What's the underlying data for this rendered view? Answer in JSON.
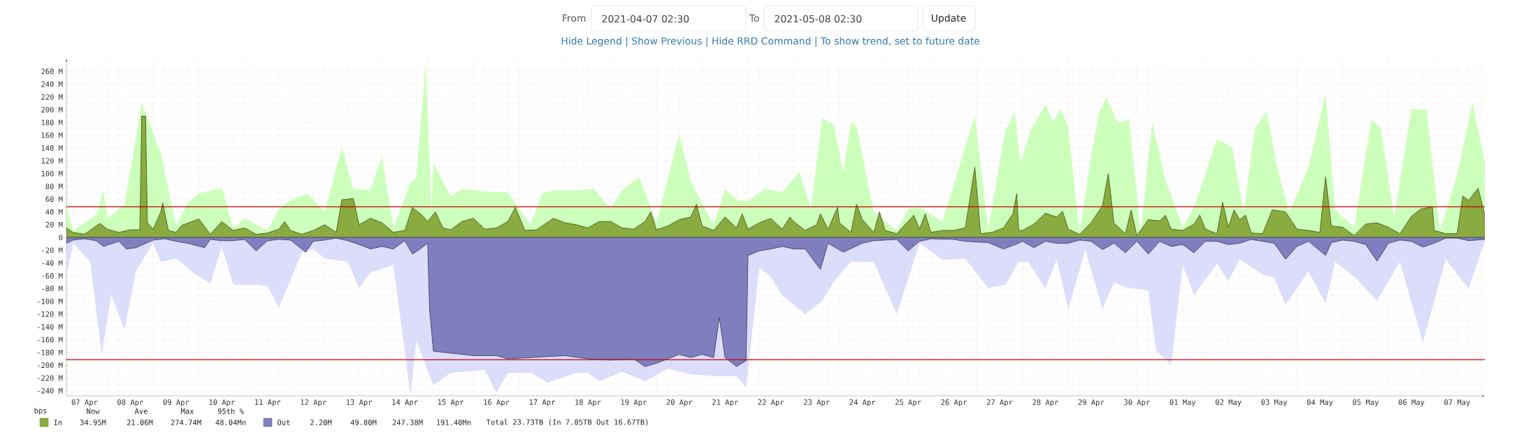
{
  "chart_data": {
    "type": "area",
    "xlim": [
      "2021-04-07T02:30",
      "2021-05-08T02:30"
    ],
    "ylim": [
      -248,
      280
    ],
    "xticks": [
      {
        "value": "2021-04-07T12:00",
        "label": "07 Apr"
      },
      {
        "value": "2021-04-08T12:00",
        "label": "08 Apr"
      },
      {
        "value": "2021-04-09T12:00",
        "label": "09 Apr"
      },
      {
        "value": "2021-04-10T12:00",
        "label": "10 Apr"
      },
      {
        "value": "2021-04-11T12:00",
        "label": "11 Apr"
      },
      {
        "value": "2021-04-12T12:00",
        "label": "12 Apr"
      },
      {
        "value": "2021-04-13T12:00",
        "label": "13 Apr"
      },
      {
        "value": "2021-04-14T12:00",
        "label": "14 Apr"
      },
      {
        "value": "2021-04-15T12:00",
        "label": "15 Apr"
      },
      {
        "value": "2021-04-16T12:00",
        "label": "16 Apr"
      },
      {
        "value": "2021-04-17T12:00",
        "label": "17 Apr"
      },
      {
        "value": "2021-04-18T12:00",
        "label": "18 Apr"
      },
      {
        "value": "2021-04-19T12:00",
        "label": "19 Apr"
      },
      {
        "value": "2021-04-20T12:00",
        "label": "20 Apr"
      },
      {
        "value": "2021-04-21T12:00",
        "label": "21 Apr"
      },
      {
        "value": "2021-04-22T12:00",
        "label": "22 Apr"
      },
      {
        "value": "2021-04-23T12:00",
        "label": "23 Apr"
      },
      {
        "value": "2021-04-24T12:00",
        "label": "24 Apr"
      },
      {
        "value": "2021-04-25T12:00",
        "label": "25 Apr"
      },
      {
        "value": "2021-04-26T12:00",
        "label": "26 Apr"
      },
      {
        "value": "2021-04-27T12:00",
        "label": "27 Apr"
      },
      {
        "value": "2021-04-28T12:00",
        "label": "28 Apr"
      },
      {
        "value": "2021-04-29T12:00",
        "label": "29 Apr"
      },
      {
        "value": "2021-04-30T12:00",
        "label": "30 Apr"
      },
      {
        "value": "2021-05-01T12:00",
        "label": "01 May"
      },
      {
        "value": "2021-05-02T12:00",
        "label": "02 May"
      },
      {
        "value": "2021-05-03T12:00",
        "label": "03 May"
      },
      {
        "value": "2021-05-04T12:00",
        "label": "04 May"
      },
      {
        "value": "2021-05-05T12:00",
        "label": "05 May"
      },
      {
        "value": "2021-05-06T12:00",
        "label": "06 May"
      },
      {
        "value": "2021-05-07T12:00",
        "label": "07 May"
      }
    ],
    "yticks": [
      {
        "value": -240,
        "label": "-240 M"
      },
      {
        "value": -220,
        "label": "-220 M"
      },
      {
        "value": -200,
        "label": "-200 M"
      },
      {
        "value": -180,
        "label": "-180 M"
      },
      {
        "value": -160,
        "label": "-160 M"
      },
      {
        "value": -140,
        "label": "-140 M"
      },
      {
        "value": -120,
        "label": "-120 M"
      },
      {
        "value": -100,
        "label": "-100 M"
      },
      {
        "value": -80,
        "label": "-80 M"
      },
      {
        "value": -60,
        "label": "-60 M"
      },
      {
        "value": -40,
        "label": "-40 M"
      },
      {
        "value": -20,
        "label": "-20 M"
      },
      0,
      {
        "value": 20,
        "label": "20 M"
      },
      {
        "value": 40,
        "label": "40 M"
      },
      {
        "value": 60,
        "label": "60 M"
      },
      {
        "value": 80,
        "label": "80 M"
      },
      {
        "value": 100,
        "label": "100 M"
      },
      {
        "value": 120,
        "label": "120 M"
      },
      {
        "value": 140,
        "label": "140 M"
      },
      {
        "value": 160,
        "label": "160 M"
      },
      {
        "value": 180,
        "label": "180 M"
      },
      {
        "value": 200,
        "label": "200 M"
      },
      {
        "value": 220,
        "label": "220 M"
      },
      {
        "value": 240,
        "label": "240 M"
      },
      {
        "value": 260,
        "label": "260 M"
      }
    ],
    "grid": true,
    "legend": "bottom",
    "ref_lines": [
      {
        "axis": "y",
        "value": 48.04,
        "color": "#c00000"
      },
      {
        "axis": "y",
        "value": -191.4,
        "color": "#c00000"
      }
    ],
    "series": [
      {
        "color": "#ccffbb",
        "x": [
          "2021-04-07T02:30",
          "2021-04-07T06:00",
          "2021-04-07T18:00",
          "2021-04-07T22:00",
          "2021-04-08T00:00",
          "2021-04-08T09:00",
          "2021-04-08T18:00",
          "2021-04-09T04:00",
          "2021-04-09T12:00",
          "2021-04-09T18:00",
          "2021-04-10T00:00",
          "2021-04-10T12:00",
          "2021-04-10T18:00",
          "2021-04-11T00:00",
          "2021-04-11T12:00",
          "2021-04-11T18:00",
          "2021-04-12T00:00",
          "2021-04-12T09:00",
          "2021-04-12T18:00",
          "2021-04-13T03:00",
          "2021-04-13T09:00",
          "2021-04-13T18:00",
          "2021-04-14T00:00",
          "2021-04-14T06:00",
          "2021-04-14T15:00",
          "2021-04-14T18:00",
          "2021-04-14T23:00",
          "2021-04-15T02:00",
          "2021-04-15T03:00",
          "2021-04-15T12:00",
          "2021-04-15T18:00",
          "2021-04-16T00:00",
          "2021-04-16T12:00",
          "2021-04-16T18:00",
          "2021-04-17T06:00",
          "2021-04-17T12:00",
          "2021-04-17T18:00",
          "2021-04-18T06:00",
          "2021-04-18T15:00",
          "2021-04-19T00:00",
          "2021-04-19T06:00",
          "2021-04-19T15:00",
          "2021-04-20T00:00",
          "2021-04-20T12:00",
          "2021-04-20T18:00",
          "2021-04-21T06:00",
          "2021-04-21T12:00",
          "2021-04-21T18:00",
          "2021-04-22T00:00",
          "2021-04-22T09:00",
          "2021-04-22T18:00",
          "2021-04-23T03:00",
          "2021-04-23T09:00",
          "2021-04-23T15:00",
          "2021-04-23T21:00",
          "2021-04-24T02:00",
          "2021-04-24T06:00",
          "2021-04-24T09:00",
          "2021-04-24T18:00",
          "2021-04-25T06:00",
          "2021-04-25T12:00",
          "2021-04-25T18:00",
          "2021-04-26T06:00",
          "2021-04-26T23:00",
          "2021-04-27T06:00",
          "2021-04-27T15:00",
          "2021-04-27T20:00",
          "2021-04-27T23:00",
          "2021-04-28T04:00",
          "2021-04-28T12:00",
          "2021-04-28T16:00",
          "2021-04-28T20:00",
          "2021-04-29T00:00",
          "2021-04-29T06:00",
          "2021-04-29T12:00",
          "2021-04-29T16:00",
          "2021-04-29T20:00",
          "2021-04-30T02:00",
          "2021-04-30T08:00",
          "2021-04-30T14:00",
          "2021-04-30T20:00",
          "2021-05-01T03:00",
          "2021-05-01T12:00",
          "2021-05-01T18:00",
          "2021-05-02T06:00",
          "2021-05-02T14:00",
          "2021-05-02T20:00",
          "2021-05-03T02:00",
          "2021-05-03T08:00",
          "2021-05-03T14:00",
          "2021-05-03T20:00",
          "2021-05-04T06:00",
          "2021-05-04T15:00",
          "2021-05-04T20:00",
          "2021-05-05T06:00",
          "2021-05-05T15:00",
          "2021-05-05T20:00",
          "2021-05-06T03:00",
          "2021-05-06T12:00",
          "2021-05-06T20:00",
          "2021-05-07T03:00",
          "2021-05-07T12:00",
          "2021-05-07T20:00",
          "2021-05-08T02:30"
        ],
        "values": [
          48,
          11,
          35,
          74,
          30,
          52,
          211,
          132,
          18,
          54,
          69,
          78,
          15,
          30,
          11,
          45,
          59,
          69,
          40,
          142,
          76,
          74,
          127,
          15,
          86,
          93,
          274,
          40,
          117,
          64,
          76,
          74,
          71,
          71,
          20,
          69,
          74,
          74,
          76,
          45,
          74,
          95,
          23,
          163,
          88,
          20,
          76,
          59,
          57,
          76,
          71,
          103,
          45,
          187,
          176,
          103,
          180,
          174,
          40,
          11,
          45,
          47,
          25,
          190,
          13,
          168,
          195,
          117,
          166,
          208,
          181,
          201,
          173,
          8,
          127,
          194,
          220,
          179,
          186,
          6,
          181,
          90,
          16,
          48,
          154,
          141,
          40,
          171,
          197,
          105,
          40,
          110,
          225,
          43,
          16,
          184,
          171,
          31,
          201,
          199,
          11,
          97,
          211,
          119
        ]
      },
      {
        "color": "#dcdcfb",
        "x": [
          "2021-04-07T02:30",
          "2021-04-07T06:00",
          "2021-04-07T15:00",
          "2021-04-07T21:00",
          "2021-04-08T02:00",
          "2021-04-08T09:00",
          "2021-04-08T15:00",
          "2021-04-09T00:00",
          "2021-04-09T04:00",
          "2021-04-09T12:00",
          "2021-04-09T21:00",
          "2021-04-10T06:00",
          "2021-04-10T12:00",
          "2021-04-10T18:00",
          "2021-04-11T06:00",
          "2021-04-11T12:00",
          "2021-04-11T18:00",
          "2021-04-12T06:00",
          "2021-04-12T12:00",
          "2021-04-12T18:00",
          "2021-04-13T06:00",
          "2021-04-13T12:00",
          "2021-04-13T18:00",
          "2021-04-14T06:00",
          "2021-04-14T15:00",
          "2021-04-14T18:00",
          "2021-04-15T03:00",
          "2021-04-15T12:00",
          "2021-04-16T06:00",
          "2021-04-16T12:00",
          "2021-04-16T18:00",
          "2021-04-17T06:00",
          "2021-04-17T15:00",
          "2021-04-18T06:00",
          "2021-04-18T12:00",
          "2021-04-18T18:00",
          "2021-04-19T06:00",
          "2021-04-19T18:00",
          "2021-04-20T06:00",
          "2021-04-20T18:00",
          "2021-04-21T06:00",
          "2021-04-21T18:00",
          "2021-04-21T23:00",
          "2021-04-22T06:00",
          "2021-04-22T12:00",
          "2021-04-22T18:00",
          "2021-04-23T06:00",
          "2021-04-23T15:00",
          "2021-04-23T21:00",
          "2021-04-24T06:00",
          "2021-04-24T18:00",
          "2021-04-25T06:00",
          "2021-04-25T18:00",
          "2021-04-26T06:00",
          "2021-04-26T18:00",
          "2021-04-27T06:00",
          "2021-04-27T15:00",
          "2021-04-27T22:00",
          "2021-04-28T03:00",
          "2021-04-28T12:00",
          "2021-04-28T18:00",
          "2021-04-29T00:00",
          "2021-04-29T09:00",
          "2021-04-29T18:00",
          "2021-04-30T00:00",
          "2021-04-30T06:00",
          "2021-04-30T18:00",
          "2021-04-30T22:00",
          "2021-05-01T06:00",
          "2021-05-01T12:00",
          "2021-05-01T18:00",
          "2021-05-02T06:00",
          "2021-05-02T12:00",
          "2021-05-02T18:00",
          "2021-05-03T06:00",
          "2021-05-03T12:00",
          "2021-05-03T18:00",
          "2021-05-04T06:00",
          "2021-05-04T15:00",
          "2021-05-04T20:00",
          "2021-05-05T06:00",
          "2021-05-05T18:00",
          "2021-05-06T06:00",
          "2021-05-06T18:00",
          "2021-05-07T06:00",
          "2021-05-07T18:00",
          "2021-05-08T02:30"
        ],
        "values": [
          -60,
          -9,
          -38,
          -183,
          -89,
          -144,
          -52,
          -9,
          -38,
          -33,
          -55,
          -72,
          -14,
          -74,
          -74,
          -76,
          -110,
          -23,
          -18,
          -33,
          -38,
          -79,
          -55,
          -43,
          -247,
          -161,
          -231,
          -212,
          -207,
          -243,
          -212,
          -212,
          -227,
          -212,
          -212,
          -225,
          -210,
          -225,
          -205,
          -214,
          -217,
          -217,
          -235,
          -47,
          -62,
          -91,
          -120,
          -99,
          -69,
          -38,
          -38,
          -120,
          -9,
          -35,
          -33,
          -79,
          -74,
          -38,
          -38,
          -80,
          -34,
          -112,
          -19,
          -112,
          -70,
          -78,
          -83,
          -176,
          -200,
          -43,
          -90,
          -41,
          -68,
          -34,
          -58,
          -63,
          -105,
          -53,
          -103,
          -38,
          -61,
          -99,
          -38,
          -164,
          -34,
          -80,
          -6
        ]
      },
      {
        "name": "In",
        "color": "#8aab3f",
        "x": [
          "2021-04-07T02:30",
          "2021-04-07T06:00",
          "2021-04-07T12:00",
          "2021-04-07T20:00",
          "2021-04-08T00:00",
          "2021-04-08T06:00",
          "2021-04-08T12:00",
          "2021-04-08T17:00",
          "2021-04-08T18:00",
          "2021-04-08T20:00",
          "2021-04-08T21:00",
          "2021-04-09T00:00",
          "2021-04-09T04:00",
          "2021-04-09T05:00",
          "2021-04-09T08:00",
          "2021-04-09T12:00",
          "2021-04-09T15:00",
          "2021-04-10T00:00",
          "2021-04-10T06:00",
          "2021-04-10T12:00",
          "2021-04-10T18:00",
          "2021-04-11T00:00",
          "2021-04-11T06:00",
          "2021-04-11T12:00",
          "2021-04-11T18:00",
          "2021-04-11T21:00",
          "2021-04-12T00:00",
          "2021-04-12T06:00",
          "2021-04-12T12:00",
          "2021-04-12T18:00",
          "2021-04-13T00:00",
          "2021-04-13T03:00",
          "2021-04-13T09:00",
          "2021-04-13T12:00",
          "2021-04-13T18:00",
          "2021-04-14T00:00",
          "2021-04-14T06:00",
          "2021-04-14T12:00",
          "2021-04-14T16:00",
          "2021-04-14T21:00",
          "2021-04-15T00:00",
          "2021-04-15T04:00",
          "2021-04-15T08:00",
          "2021-04-15T12:00",
          "2021-04-15T18:00",
          "2021-04-16T00:00",
          "2021-04-16T06:00",
          "2021-04-16T12:00",
          "2021-04-16T18:00",
          "2021-04-16T22:00",
          "2021-04-17T03:00",
          "2021-04-17T09:00",
          "2021-04-17T18:00",
          "2021-04-18T00:00",
          "2021-04-18T06:00",
          "2021-04-18T12:00",
          "2021-04-18T18:00",
          "2021-04-19T00:00",
          "2021-04-19T06:00",
          "2021-04-19T12:00",
          "2021-04-19T18:00",
          "2021-04-19T21:00",
          "2021-04-20T00:00",
          "2021-04-20T06:00",
          "2021-04-20T12:00",
          "2021-04-20T18:00",
          "2021-04-20T21:00",
          "2021-04-21T00:00",
          "2021-04-21T06:00",
          "2021-04-21T12:00",
          "2021-04-21T18:00",
          "2021-04-21T21:00",
          "2021-04-22T00:00",
          "2021-04-22T06:00",
          "2021-04-22T12:00",
          "2021-04-22T18:00",
          "2021-04-22T22:00",
          "2021-04-23T00:00",
          "2021-04-23T06:00",
          "2021-04-23T12:00",
          "2021-04-23T14:00",
          "2021-04-23T18:00",
          "2021-04-23T23:00",
          "2021-04-24T00:00",
          "2021-04-24T06:00",
          "2021-04-24T09:00",
          "2021-04-24T12:00",
          "2021-04-24T18:00",
          "2021-04-24T21:00",
          "2021-04-25T00:00",
          "2021-04-25T06:00",
          "2021-04-25T12:00",
          "2021-04-25T15:00",
          "2021-04-25T18:00",
          "2021-04-25T21:00",
          "2021-04-26T00:00",
          "2021-04-26T06:00",
          "2021-04-26T12:00",
          "2021-04-26T18:00",
          "2021-04-26T23:00",
          "2021-04-27T02:00",
          "2021-04-27T08:00",
          "2021-04-27T14:00",
          "2021-04-27T19:00",
          "2021-04-27T21:00",
          "2021-04-27T22:00",
          "2021-04-28T00:00",
          "2021-04-28T06:00",
          "2021-04-28T12:00",
          "2021-04-28T18:00",
          "2021-04-28T21:00",
          "2021-04-29T00:00",
          "2021-04-29T06:00",
          "2021-04-29T12:00",
          "2021-04-29T18:00",
          "2021-04-29T21:00",
          "2021-04-30T00:00",
          "2021-04-30T06:00",
          "2021-04-30T09:00",
          "2021-04-30T12:00",
          "2021-04-30T18:00",
          "2021-05-01T00:00",
          "2021-05-01T03:00",
          "2021-05-01T06:00",
          "2021-05-01T12:00",
          "2021-05-01T18:00",
          "2021-05-01T21:00",
          "2021-05-02T00:00",
          "2021-05-02T06:00",
          "2021-05-02T09:00",
          "2021-05-02T12:00",
          "2021-05-02T15:00",
          "2021-05-02T18:00",
          "2021-05-02T21:00",
          "2021-05-03T00:00",
          "2021-05-03T06:00",
          "2021-05-03T11:00",
          "2021-05-03T12:00",
          "2021-05-03T18:00",
          "2021-05-04T00:00",
          "2021-05-04T06:00",
          "2021-05-04T12:00",
          "2021-05-04T15:00",
          "2021-05-04T18:00",
          "2021-05-05T00:00",
          "2021-05-05T06:00",
          "2021-05-05T12:00",
          "2021-05-05T18:00",
          "2021-05-06T00:00",
          "2021-05-06T06:00",
          "2021-05-06T12:00",
          "2021-05-06T17:00",
          "2021-05-06T18:00",
          "2021-05-06T23:00",
          "2021-05-07T00:00",
          "2021-05-07T06:00",
          "2021-05-07T12:00",
          "2021-05-07T15:00",
          "2021-05-07T18:00",
          "2021-05-07T23:00",
          "2021-05-08T02:30"
        ],
        "values": [
          15,
          8,
          5,
          22,
          13,
          8,
          12,
          12,
          190,
          190,
          23,
          13,
          40,
          54,
          11,
          8,
          19,
          29,
          5,
          25,
          11,
          15,
          5,
          7,
          13,
          25,
          11,
          5,
          11,
          20,
          8,
          59,
          61,
          20,
          30,
          23,
          8,
          11,
          47,
          35,
          25,
          40,
          15,
          12,
          25,
          30,
          13,
          15,
          25,
          47,
          11,
          12,
          30,
          23,
          20,
          15,
          25,
          25,
          15,
          13,
          25,
          40,
          12,
          18,
          28,
          32,
          52,
          18,
          11,
          32,
          15,
          37,
          13,
          23,
          30,
          13,
          32,
          25,
          11,
          20,
          37,
          13,
          47,
          23,
          8,
          52,
          28,
          8,
          40,
          11,
          6,
          25,
          35,
          13,
          37,
          8,
          11,
          11,
          15,
          110,
          6,
          8,
          15,
          37,
          69,
          11,
          11,
          21,
          38,
          32,
          41,
          13,
          5,
          23,
          50,
          100,
          23,
          6,
          43,
          3,
          28,
          26,
          35,
          13,
          11,
          21,
          35,
          13,
          6,
          55,
          16,
          43,
          28,
          35,
          7,
          6,
          43,
          43,
          40,
          13,
          11,
          8,
          95,
          18,
          16,
          3,
          21,
          23,
          16,
          6,
          33,
          45,
          45,
          48,
          11,
          6,
          6,
          65,
          58,
          77,
          35
        ]
      },
      {
        "name": "Out",
        "color": "#7f7fbf",
        "x": [
          "2021-04-07T02:30",
          "2021-04-07T06:00",
          "2021-04-07T12:00",
          "2021-04-07T18:00",
          "2021-04-07T22:00",
          "2021-04-08T06:00",
          "2021-04-08T10:00",
          "2021-04-08T15:00",
          "2021-04-09T00:00",
          "2021-04-09T06:00",
          "2021-04-09T12:00",
          "2021-04-09T18:00",
          "2021-04-10T03:00",
          "2021-04-10T06:00",
          "2021-04-10T12:00",
          "2021-04-10T18:00",
          "2021-04-11T00:00",
          "2021-04-11T06:00",
          "2021-04-11T12:00",
          "2021-04-11T18:00",
          "2021-04-12T00:00",
          "2021-04-12T08:00",
          "2021-04-12T12:00",
          "2021-04-12T18:00",
          "2021-04-13T00:00",
          "2021-04-13T06:00",
          "2021-04-13T12:00",
          "2021-04-13T18:00",
          "2021-04-14T00:00",
          "2021-04-14T06:00",
          "2021-04-14T12:00",
          "2021-04-14T16:00",
          "2021-04-14T20:00",
          "2021-04-15T00:00",
          "2021-04-15T01:00",
          "2021-04-15T03:00",
          "2021-04-15T12:00",
          "2021-04-16T00:00",
          "2021-04-16T12:00",
          "2021-04-16T18:00",
          "2021-04-17T06:00",
          "2021-04-18T00:00",
          "2021-04-18T12:00",
          "2021-04-19T00:00",
          "2021-04-19T12:00",
          "2021-04-19T18:00",
          "2021-04-20T00:00",
          "2021-04-20T12:00",
          "2021-04-20T18:00",
          "2021-04-21T00:00",
          "2021-04-21T06:00",
          "2021-04-21T09:00",
          "2021-04-21T12:00",
          "2021-04-21T18:00",
          "2021-04-21T23:00",
          "2021-04-21T23:30",
          "2021-04-22T00:00",
          "2021-04-22T06:00",
          "2021-04-22T12:00",
          "2021-04-22T18:00",
          "2021-04-23T00:00",
          "2021-04-23T06:00",
          "2021-04-23T14:00",
          "2021-04-23T18:00",
          "2021-04-24T02:00",
          "2021-04-24T12:00",
          "2021-04-24T18:00",
          "2021-04-25T06:00",
          "2021-04-25T12:00",
          "2021-04-25T18:00",
          "2021-04-26T00:00",
          "2021-04-26T12:00",
          "2021-04-26T18:00",
          "2021-04-27T06:00",
          "2021-04-27T14:00",
          "2021-04-27T22:00",
          "2021-04-28T00:00",
          "2021-04-28T06:00",
          "2021-04-28T12:00",
          "2021-04-28T18:00",
          "2021-04-29T00:00",
          "2021-04-29T06:00",
          "2021-04-29T12:00",
          "2021-04-29T18:00",
          "2021-04-30T00:00",
          "2021-04-30T06:00",
          "2021-04-30T12:00",
          "2021-04-30T18:00",
          "2021-05-01T00:00",
          "2021-05-01T06:00",
          "2021-05-01T12:00",
          "2021-05-01T18:00",
          "2021-05-02T00:00",
          "2021-05-02T06:00",
          "2021-05-02T12:00",
          "2021-05-02T18:00",
          "2021-05-03T00:00",
          "2021-05-03T06:00",
          "2021-05-03T12:00",
          "2021-05-03T18:00",
          "2021-05-04T00:00",
          "2021-05-04T06:00",
          "2021-05-04T15:00",
          "2021-05-04T18:00",
          "2021-05-05T00:00",
          "2021-05-05T06:00",
          "2021-05-05T12:00",
          "2021-05-05T18:00",
          "2021-05-06T00:00",
          "2021-05-06T06:00",
          "2021-05-06T12:00",
          "2021-05-06T18:00",
          "2021-05-07T00:00",
          "2021-05-07T06:00",
          "2021-05-07T12:00",
          "2021-05-07T18:00",
          "2021-05-08T02:30"
        ],
        "values": [
          -9,
          -4,
          -2,
          -5,
          -14,
          -6,
          -18,
          -16,
          -4,
          -2,
          -6,
          -9,
          -16,
          -3,
          -5,
          -5,
          -3,
          -21,
          -5,
          -3,
          -4,
          -23,
          -6,
          -4,
          -1,
          -5,
          -11,
          -18,
          -14,
          -18,
          -5,
          -26,
          -18,
          -9,
          -113,
          -178,
          -181,
          -185,
          -185,
          -190,
          -188,
          -185,
          -190,
          -192,
          -190,
          -202,
          -197,
          -183,
          -188,
          -183,
          -188,
          -125,
          -188,
          -202,
          -193,
          -118,
          -28,
          -21,
          -18,
          -14,
          -18,
          -18,
          -50,
          -9,
          -23,
          -9,
          -5,
          -3,
          -21,
          -6,
          -2,
          -3,
          -6,
          -8,
          -18,
          -9,
          -6,
          -16,
          -6,
          -9,
          -9,
          -4,
          -6,
          -19,
          -9,
          -24,
          -6,
          -26,
          -6,
          -14,
          -11,
          -24,
          -6,
          -6,
          -11,
          -9,
          -3,
          -6,
          -9,
          -34,
          -14,
          -6,
          -28,
          -8,
          -4,
          -6,
          -11,
          -37,
          -9,
          -4,
          -6,
          -15,
          -9,
          -1,
          -1,
          -5,
          -3
        ]
      }
    ],
    "annotations": [
      "From",
      "2021-04-07 02:30",
      "To",
      "2021-05-08 02:30",
      "Update",
      "Hide Legend | Show Previous | Hide RRD Command | To show trend, set to future date",
      "bps",
      "Now",
      "Ave",
      "Max",
      "95th %",
      "34.95M",
      "21.06M",
      "274.74M",
      "48.04Mn",
      "2.20M",
      "49.80M",
      "247.38M",
      "191.40Mn",
      "Total 23.73TB (In 7.05TB Out 16.67TB)"
    ]
  }
}
